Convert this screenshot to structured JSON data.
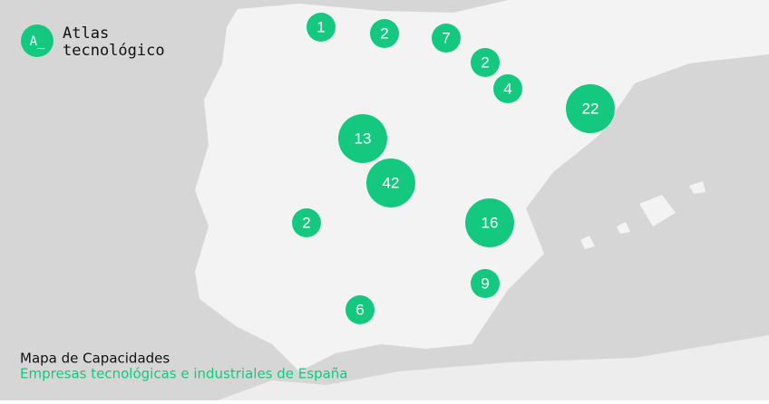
{
  "logo": {
    "line1": "Atlas",
    "line2": "tecnológico",
    "mark": "A_"
  },
  "caption": {
    "title": "Mapa de Capacidades",
    "subtitle": "Empresas tecnológicas e industriales de España"
  },
  "clusters": [
    {
      "count": 1
    },
    {
      "count": 2
    },
    {
      "count": 7
    },
    {
      "count": 2
    },
    {
      "count": 4
    },
    {
      "count": 22
    },
    {
      "count": 13
    },
    {
      "count": 42
    },
    {
      "count": 2
    },
    {
      "count": 16
    },
    {
      "count": 9
    },
    {
      "count": 6
    }
  ]
}
